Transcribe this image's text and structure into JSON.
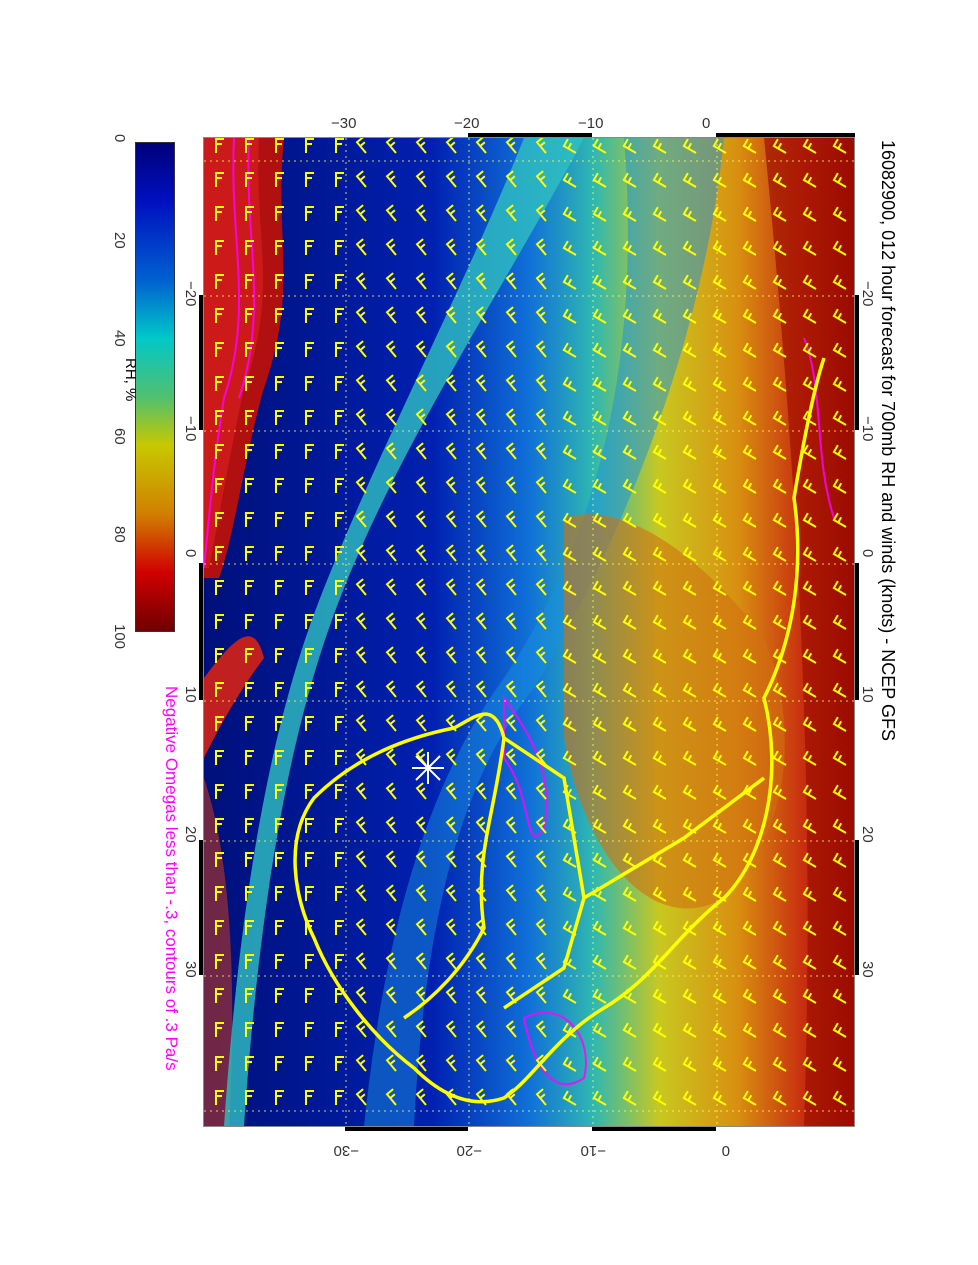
{
  "title": "16082900, 012 hour forecast for 700mb RH and winds (knots) - NCEP GFS",
  "subtitle": "Negative Omegas less than -.3, contours of .3 Pa/s",
  "colorbar": {
    "label": "RH, %",
    "ticks": [
      "0",
      "20",
      "40",
      "60",
      "80",
      "100"
    ],
    "colors": [
      "#00007a",
      "#0010c0",
      "#0060d0",
      "#00c8c8",
      "#50c070",
      "#c8c800",
      "#d08000",
      "#d00000",
      "#700000"
    ]
  },
  "axes": {
    "lat_ticks": [
      "−30",
      "−20",
      "−10",
      "0"
    ],
    "lon_ticks": [
      "−20",
      "−10",
      "0",
      "10",
      "20",
      "30"
    ]
  },
  "colors": {
    "wind_barbs": "#ffff00",
    "omega_contours": "#ff00ff",
    "coastlines": "#ffff00"
  }
}
